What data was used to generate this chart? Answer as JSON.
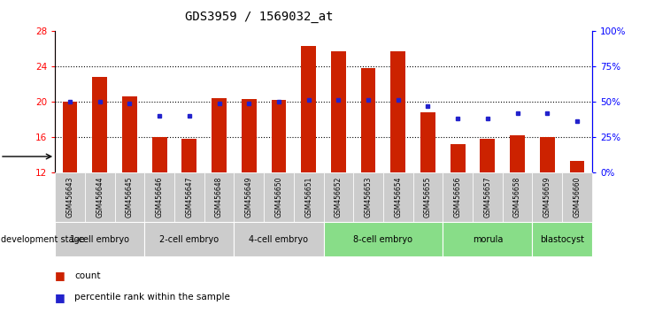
{
  "title": "GDS3959 / 1569032_at",
  "samples": [
    "GSM456643",
    "GSM456644",
    "GSM456645",
    "GSM456646",
    "GSM456647",
    "GSM456648",
    "GSM456649",
    "GSM456650",
    "GSM456651",
    "GSM456652",
    "GSM456653",
    "GSM456654",
    "GSM456655",
    "GSM456656",
    "GSM456657",
    "GSM456658",
    "GSM456659",
    "GSM456660"
  ],
  "bar_values": [
    20.0,
    22.8,
    20.6,
    16.0,
    15.8,
    20.4,
    20.3,
    20.2,
    26.3,
    25.7,
    23.8,
    25.7,
    18.8,
    15.2,
    15.8,
    16.2,
    16.0,
    13.3
  ],
  "dot_values_pct": [
    50,
    50,
    49,
    40,
    40,
    49,
    49,
    50,
    51,
    51,
    51,
    51,
    47,
    38,
    38,
    42,
    42,
    36
  ],
  "stages": [
    {
      "label": "1-cell embryo",
      "start": 0,
      "end": 3,
      "color": "#cccccc"
    },
    {
      "label": "2-cell embryo",
      "start": 3,
      "end": 6,
      "color": "#cccccc"
    },
    {
      "label": "4-cell embryo",
      "start": 6,
      "end": 9,
      "color": "#cccccc"
    },
    {
      "label": "8-cell embryo",
      "start": 9,
      "end": 13,
      "color": "#88dd88"
    },
    {
      "label": "morula",
      "start": 13,
      "end": 16,
      "color": "#88dd88"
    },
    {
      "label": "blastocyst",
      "start": 16,
      "end": 18,
      "color": "#88dd88"
    }
  ],
  "ylim_left": [
    12,
    28
  ],
  "ylim_right": [
    0,
    100
  ],
  "yticks_left": [
    12,
    16,
    20,
    24,
    28
  ],
  "yticks_right": [
    0,
    25,
    50,
    75,
    100
  ],
  "bar_color": "#cc2200",
  "dot_color": "#2222cc",
  "sample_bg_color": "#cccccc",
  "bar_width": 0.5,
  "legend_count_label": "count",
  "legend_pct_label": "percentile rank within the sample"
}
